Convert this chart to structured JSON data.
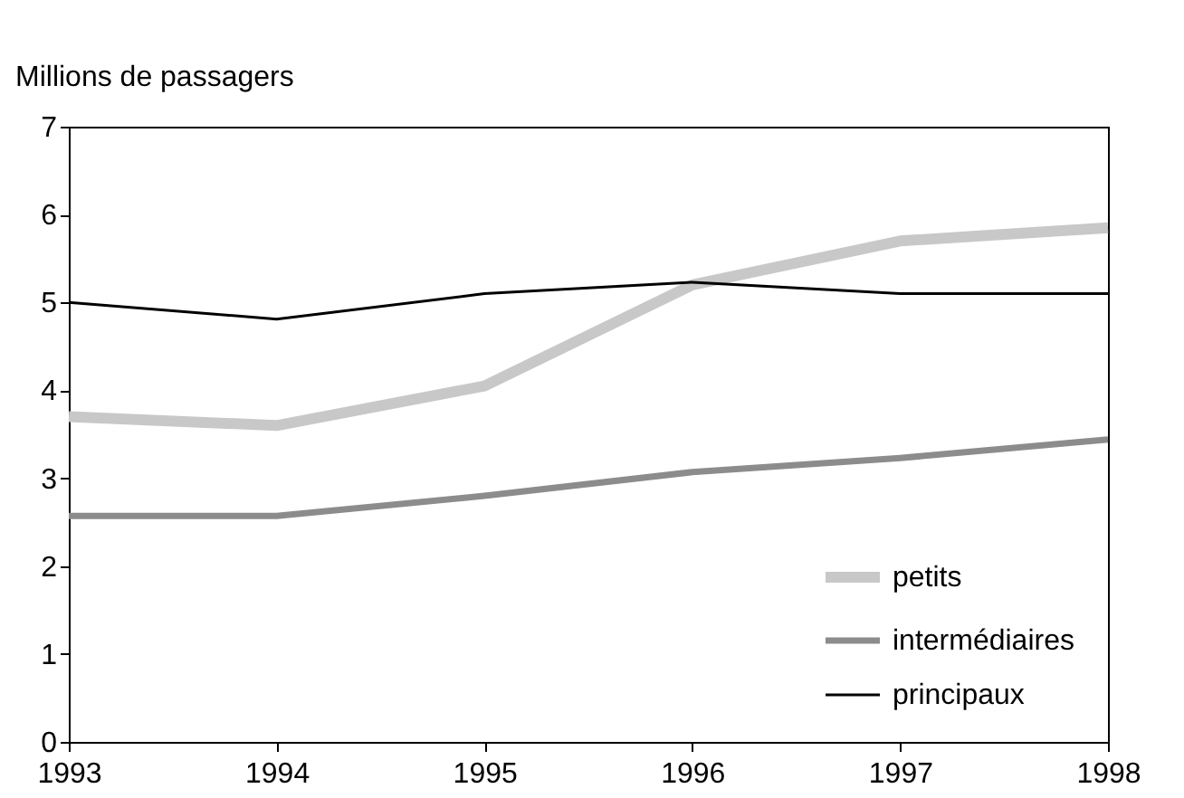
{
  "chart_data": {
    "type": "line",
    "ylabel": "Millions de passagers",
    "x": [
      1993,
      1994,
      1995,
      1996,
      1997,
      1998
    ],
    "series": [
      {
        "name": "petits",
        "color": "#c8c8c8",
        "values": [
          3.7,
          3.6,
          4.05,
          5.2,
          5.7,
          5.85
        ]
      },
      {
        "name": "intermédiaires",
        "color": "#8c8c8c",
        "values": [
          2.57,
          2.57,
          2.8,
          3.07,
          3.23,
          3.44
        ]
      },
      {
        "name": "principaux",
        "color": "#000000",
        "values": [
          5.0,
          4.81,
          5.1,
          5.23,
          5.1,
          5.1
        ]
      }
    ],
    "xlim": [
      1993,
      1998
    ],
    "xticks": [
      1993,
      1994,
      1995,
      1996,
      1997,
      1998
    ],
    "ylim": [
      0,
      7
    ],
    "yticks": [
      0,
      1,
      2,
      3,
      4,
      5,
      6,
      7
    ],
    "grid": false,
    "legend": "bottom right",
    "marker": "none",
    "line_style": "solid"
  }
}
